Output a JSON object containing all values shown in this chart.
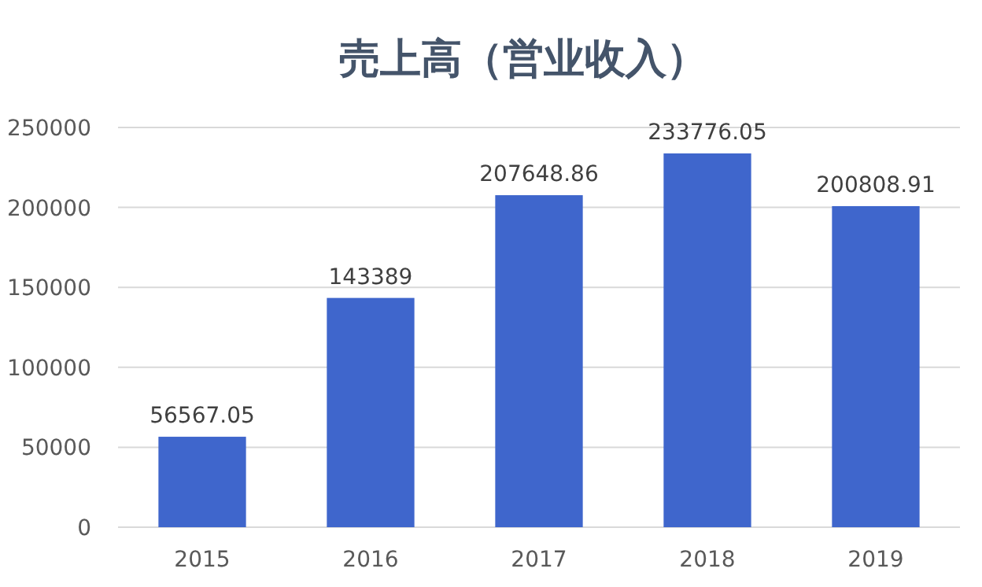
{
  "chart_data": {
    "type": "bar",
    "title": "売上高（営业收入）",
    "categories": [
      "2015",
      "2016",
      "2017",
      "2018",
      "2019"
    ],
    "values": [
      56567.05,
      143389,
      207648.86,
      233776.05,
      200808.91
    ],
    "color": "#3f66cc",
    "ylim": [
      0,
      250000
    ],
    "yticks": [
      0,
      50000,
      100000,
      150000,
      200000,
      250000
    ],
    "grid": "y",
    "data_labels": true
  }
}
